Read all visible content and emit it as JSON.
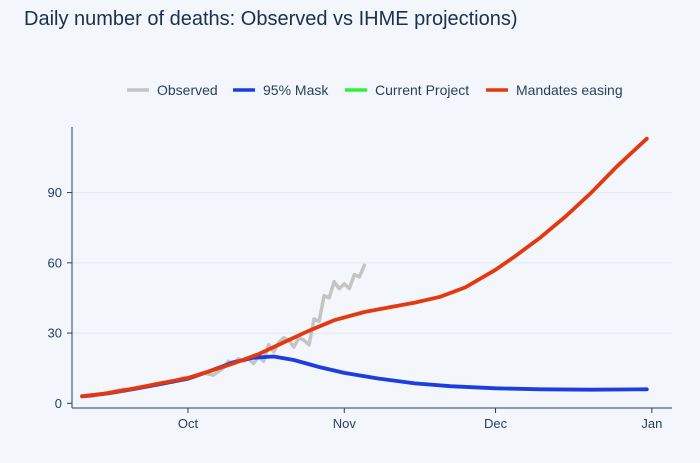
{
  "chart_data": {
    "type": "line",
    "title": "Daily number of deaths: Observed vs IHME projections)",
    "xlabel": "",
    "ylabel": "",
    "x_ticks": [
      {
        "label": "Oct",
        "date": "2020-10-01"
      },
      {
        "label": "Nov",
        "date": "2020-11-01"
      },
      {
        "label": "Dec",
        "date": "2020-12-01"
      },
      {
        "label": "Jan",
        "date": "2021-01-01"
      }
    ],
    "y_ticks": [
      0,
      30,
      60,
      90
    ],
    "xlim": [
      "2020-09-08",
      "2021-01-05"
    ],
    "ylim": [
      -2,
      118
    ],
    "grid": "horizontal",
    "legend_position": "top",
    "series": [
      {
        "name": "Observed",
        "color": "#c4c4c4",
        "points": [
          [
            "2020-09-10",
            3
          ],
          [
            "2020-09-12",
            3
          ],
          [
            "2020-09-14",
            4
          ],
          [
            "2020-09-16",
            5
          ],
          [
            "2020-09-18",
            6
          ],
          [
            "2020-09-20",
            6
          ],
          [
            "2020-09-22",
            7
          ],
          [
            "2020-09-24",
            8
          ],
          [
            "2020-09-26",
            9
          ],
          [
            "2020-09-28",
            9
          ],
          [
            "2020-09-30",
            11
          ],
          [
            "2020-10-02",
            11
          ],
          [
            "2020-10-04",
            13
          ],
          [
            "2020-10-06",
            12
          ],
          [
            "2020-10-08",
            15
          ],
          [
            "2020-10-09",
            18
          ],
          [
            "2020-10-10",
            17
          ],
          [
            "2020-10-11",
            19
          ],
          [
            "2020-10-12",
            18
          ],
          [
            "2020-10-13",
            19
          ],
          [
            "2020-10-14",
            17
          ],
          [
            "2020-10-15",
            20
          ],
          [
            "2020-10-16",
            18
          ],
          [
            "2020-10-17",
            25
          ],
          [
            "2020-10-18",
            22
          ],
          [
            "2020-10-19",
            26
          ],
          [
            "2020-10-20",
            28
          ],
          [
            "2020-10-21",
            27
          ],
          [
            "2020-10-22",
            24
          ],
          [
            "2020-10-23",
            28
          ],
          [
            "2020-10-24",
            27
          ],
          [
            "2020-10-25",
            25
          ],
          [
            "2020-10-26",
            36
          ],
          [
            "2020-10-27",
            35
          ],
          [
            "2020-10-28",
            46
          ],
          [
            "2020-10-29",
            45
          ],
          [
            "2020-10-30",
            52
          ],
          [
            "2020-10-31",
            49
          ],
          [
            "2020-11-01",
            51
          ],
          [
            "2020-11-02",
            49
          ],
          [
            "2020-11-03",
            55
          ],
          [
            "2020-11-04",
            54
          ],
          [
            "2020-11-05",
            59
          ]
        ]
      },
      {
        "name": "95% Mask",
        "color": "#1a3ee0",
        "points": [
          [
            "2020-09-10",
            3
          ],
          [
            "2020-09-15",
            4.2
          ],
          [
            "2020-09-20",
            6
          ],
          [
            "2020-09-25",
            8
          ],
          [
            "2020-10-01",
            10.5
          ],
          [
            "2020-10-05",
            13.5
          ],
          [
            "2020-10-10",
            17.5
          ],
          [
            "2020-10-14",
            19.5
          ],
          [
            "2020-10-18",
            20
          ],
          [
            "2020-10-22",
            18.5
          ],
          [
            "2020-10-27",
            15.5
          ],
          [
            "2020-11-01",
            13
          ],
          [
            "2020-11-08",
            10.5
          ],
          [
            "2020-11-15",
            8.5
          ],
          [
            "2020-11-22",
            7.3
          ],
          [
            "2020-12-01",
            6.4
          ],
          [
            "2020-12-10",
            6
          ],
          [
            "2020-12-20",
            5.8
          ],
          [
            "2020-12-31",
            6
          ]
        ]
      },
      {
        "name": "Current Project",
        "color": "#2df23a",
        "points": []
      },
      {
        "name": "Mandates easing",
        "color": "#e6380e",
        "points": [
          [
            "2020-09-10",
            3
          ],
          [
            "2020-09-15",
            4.3
          ],
          [
            "2020-09-20",
            6.2
          ],
          [
            "2020-09-25",
            8.3
          ],
          [
            "2020-10-01",
            10.8
          ],
          [
            "2020-10-05",
            13.5
          ],
          [
            "2020-10-10",
            17
          ],
          [
            "2020-10-15",
            21
          ],
          [
            "2020-10-20",
            26
          ],
          [
            "2020-10-25",
            31
          ],
          [
            "2020-10-30",
            35.5
          ],
          [
            "2020-11-05",
            39
          ],
          [
            "2020-11-10",
            41
          ],
          [
            "2020-11-15",
            43
          ],
          [
            "2020-11-20",
            45.5
          ],
          [
            "2020-11-25",
            49.5
          ],
          [
            "2020-12-01",
            57
          ],
          [
            "2020-12-05",
            63
          ],
          [
            "2020-12-10",
            71
          ],
          [
            "2020-12-15",
            80
          ],
          [
            "2020-12-20",
            90
          ],
          [
            "2020-12-25",
            101
          ],
          [
            "2020-12-31",
            113
          ]
        ]
      }
    ]
  }
}
